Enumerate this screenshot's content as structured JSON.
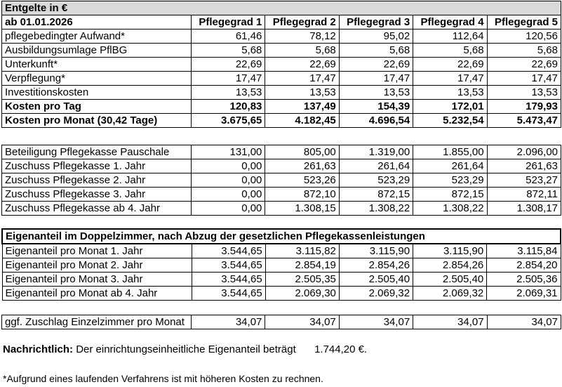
{
  "title": "Entgelte in €",
  "as_of": "ab 01.01.2026",
  "grades": [
    "Pflegegrad 1",
    "Pflegegrad 2",
    "Pflegegrad 3",
    "Pflegegrad 4",
    "Pflegegrad 5"
  ],
  "costs": [
    {
      "label": "pflegebedingter Aufwand*",
      "v": [
        "61,46",
        "78,12",
        "95,02",
        "112,64",
        "120,56"
      ]
    },
    {
      "label": "Ausbildungsumlage PflBG",
      "v": [
        "5,68",
        "5,68",
        "5,68",
        "5,68",
        "5,68"
      ]
    },
    {
      "label": "Unterkunft*",
      "v": [
        "22,69",
        "22,69",
        "22,69",
        "22,69",
        "22,69"
      ]
    },
    {
      "label": "Verpflegung*",
      "v": [
        "17,47",
        "17,47",
        "17,47",
        "17,47",
        "17,47"
      ]
    },
    {
      "label": "Investitionskosten",
      "v": [
        "13,53",
        "13,53",
        "13,53",
        "13,53",
        "13,53"
      ]
    }
  ],
  "daily_total": {
    "label": "Kosten pro Tag",
    "v": [
      "120,83",
      "137,49",
      "154,39",
      "172,01",
      "179,93"
    ]
  },
  "monthly_total": {
    "label": "Kosten pro Monat (30,42 Tage)",
    "v": [
      "3.675,65",
      "4.182,45",
      "4.696,54",
      "5.232,54",
      "5.473,47"
    ]
  },
  "insurance": [
    {
      "label": "Beteiligung Pflegekasse Pauschale",
      "v": [
        "131,00",
        "805,00",
        "1.319,00",
        "1.855,00",
        "2.096,00"
      ]
    },
    {
      "label": "Zuschuss Pflegekasse 1. Jahr",
      "v": [
        "0,00",
        "261,63",
        "261,64",
        "261,64",
        "261,63"
      ]
    },
    {
      "label": "Zuschuss Pflegekasse 2. Jahr",
      "v": [
        "0,00",
        "523,26",
        "523,29",
        "523,29",
        "523,27"
      ]
    },
    {
      "label": "Zuschuss Pflegekasse 3. Jahr",
      "v": [
        "0,00",
        "872,10",
        "872,15",
        "872,15",
        "872,11"
      ]
    },
    {
      "label": "Zuschuss Pflegekasse ab 4. Jahr",
      "v": [
        "0,00",
        "1.308,15",
        "1.308,22",
        "1.308,22",
        "1.308,17"
      ]
    }
  ],
  "own_share_title": "Eigenanteil im Doppelzimmer, nach Abzug der gesetzlichen Pflegekassenleistungen",
  "own_share": [
    {
      "label": "Eigenanteil pro Monat 1. Jahr",
      "v": [
        "3.544,65",
        "3.115,82",
        "3.115,90",
        "3.115,90",
        "3.115,84"
      ]
    },
    {
      "label": "Eigenanteil pro Monat 2. Jahr",
      "v": [
        "3.544,65",
        "2.854,19",
        "2.854,26",
        "2.854,26",
        "2.854,20"
      ]
    },
    {
      "label": "Eigenanteil pro Monat 3. Jahr",
      "v": [
        "3.544,65",
        "2.505,35",
        "2.505,40",
        "2.505,40",
        "2.505,36"
      ]
    },
    {
      "label": "Eigenanteil pro Monat ab 4. Jahr",
      "v": [
        "3.544,65",
        "2.069,30",
        "2.069,32",
        "2.069,32",
        "2.069,31"
      ]
    }
  ],
  "single_room": {
    "label": "ggf. Zuschlag Einzelzimmer pro Monat",
    "v": [
      "34,07",
      "34,07",
      "34,07",
      "34,07",
      "34,07"
    ]
  },
  "note_label": "Nachrichtlich:",
  "note_text": "Der einrichtungseinheitliche Eigenanteil beträgt",
  "note_value": "1.744,20 €.",
  "footnote": "*Aufgrund eines laufenden Verfahrens ist mit höheren Kosten zu rechnen."
}
